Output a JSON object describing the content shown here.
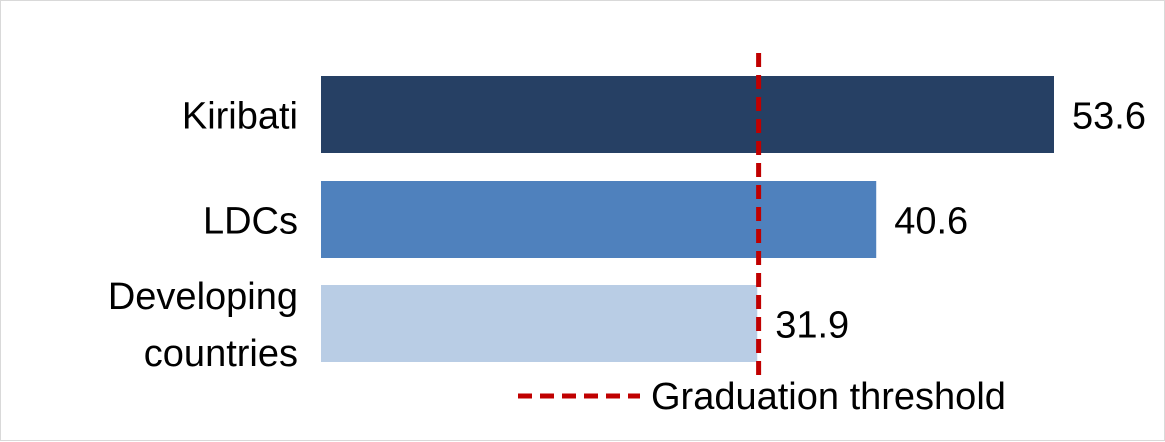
{
  "chart_data": {
    "type": "bar",
    "orientation": "horizontal",
    "categories": [
      "Kiribati",
      "LDCs",
      "Developing countries"
    ],
    "category_label_lines": [
      [
        "Kiribati"
      ],
      [
        "LDCs"
      ],
      [
        "Developing",
        "countries"
      ]
    ],
    "values": [
      53.6,
      40.6,
      31.9
    ],
    "value_labels": [
      "53.6",
      "40.6",
      "31.9"
    ],
    "bar_colors": [
      "#264064",
      "#4f81bd",
      "#b9cde5"
    ],
    "xlim": [
      0,
      53.6
    ],
    "threshold": {
      "value": 32,
      "label": "Graduation threshold",
      "color": "#c00000",
      "style": "dashed"
    },
    "title": "",
    "xlabel": "",
    "ylabel": "",
    "grid": false,
    "legend_position": "bottom"
  }
}
